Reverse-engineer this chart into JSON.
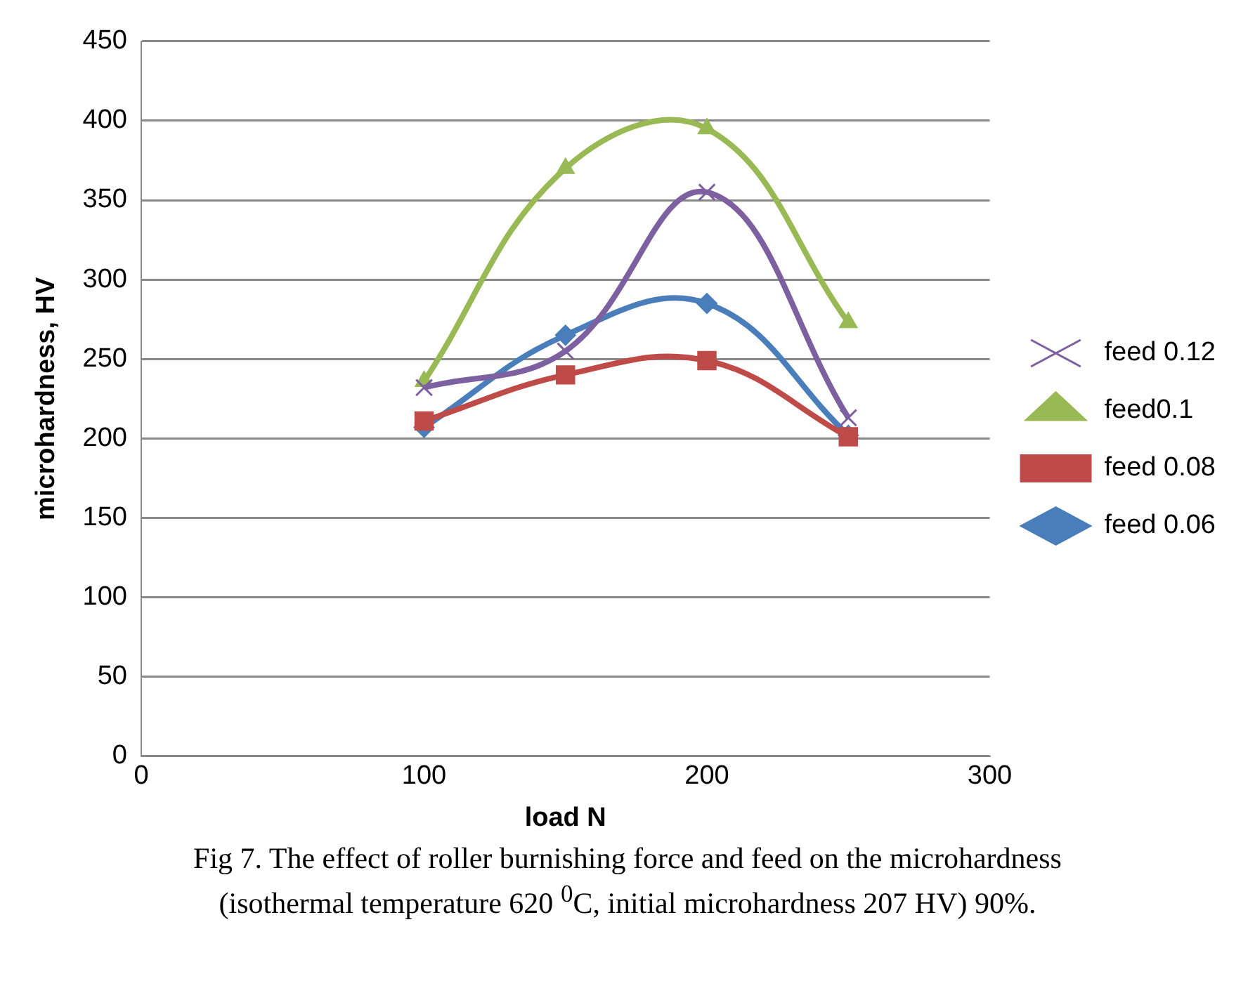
{
  "chart_data": {
    "type": "line",
    "xlabel": "load N",
    "ylabel": "microhardness, HV",
    "xlim": [
      0,
      300
    ],
    "xticks": [
      0,
      100,
      200,
      300
    ],
    "ylim": [
      0,
      450
    ],
    "yticks": [
      0,
      50,
      100,
      150,
      200,
      250,
      300,
      350,
      400,
      450
    ],
    "grid": "y",
    "legend": "right",
    "annotations": [
      "Fig 7. The effect of roller burnishing force and feed on the microhardness (isothermal temperature 620 $^{0}$C, initial microhardness 207 HV) 90%."
    ],
    "series": [
      {
        "name": "feed 0.06",
        "color": "#4a7ebb",
        "marker": "diamond",
        "x": [
          100,
          150,
          200,
          250
        ],
        "values": [
          207,
          265,
          285,
          202
        ]
      },
      {
        "name": "feed 0.08",
        "color": "#be4b48",
        "marker": "square",
        "x": [
          100,
          150,
          200,
          250
        ],
        "values": [
          211,
          240,
          249,
          201
        ]
      },
      {
        "name": "feed0.1",
        "color": "#98b954",
        "marker": "triangle",
        "x": [
          100,
          150,
          200,
          250
        ],
        "values": [
          236,
          370,
          395,
          273
        ]
      },
      {
        "name": "feed 0.12",
        "color": "#7d60a0",
        "marker": "cross",
        "x": [
          100,
          150,
          200,
          250
        ],
        "values": [
          232,
          255,
          355,
          213
        ]
      }
    ]
  }
}
